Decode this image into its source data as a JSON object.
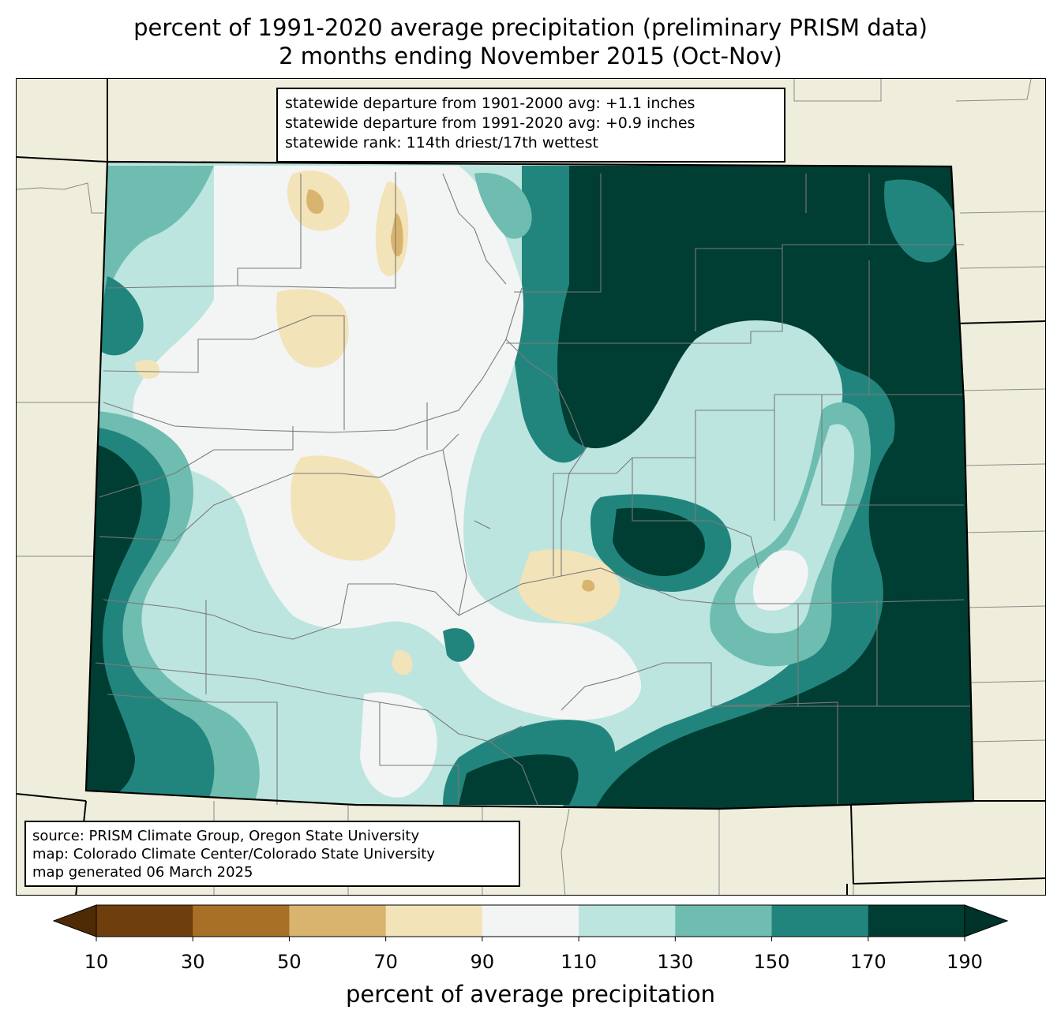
{
  "title_line1": "percent of 1991-2020 average precipitation (preliminary PRISM data)",
  "title_line2": "2 months ending November 2015 (Oct-Nov)",
  "stats": {
    "line1": "statewide departure from 1901-2000 avg: +1.1 inches",
    "line2": "statewide departure from 1991-2020 avg: +0.9 inches",
    "line3": "statewide rank: 114th driest/17th wettest"
  },
  "source": {
    "line1": "source: PRISM Climate Group, Oregon State University",
    "line2": "map: Colorado Climate Center/Colorado State University",
    "line3": "map generated 06 March 2025"
  },
  "colorbar": {
    "title": "percent of average precipitation",
    "ticks": [
      "10",
      "30",
      "50",
      "70",
      "90",
      "110",
      "130",
      "150",
      "170",
      "190"
    ],
    "colors": [
      "#6e3f0d",
      "#a86f26",
      "#d9b46f",
      "#f3e3b9",
      "#f3f5f4",
      "#bce5e0",
      "#6ebdb0",
      "#22857d",
      "#003d33"
    ],
    "under_color": "#4f2b05",
    "over_color": "#00332a"
  },
  "map_colors": {
    "background": "#efeedc",
    "state_border": "#000000",
    "county_border": "#7a7a7a"
  }
}
